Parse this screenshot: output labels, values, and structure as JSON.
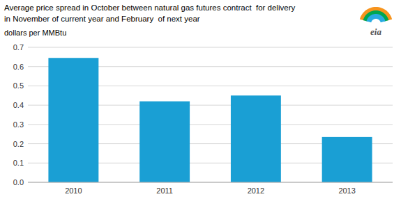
{
  "chart_data": {
    "type": "bar",
    "title": [
      "Average price spread in October between natural gas futures contract  for delivery",
      "in November of current year and February  of next year"
    ],
    "subtitle": "dollars per MMBtu",
    "annotations": [
      "eia"
    ],
    "categories": [
      "2010",
      "2011",
      "2012",
      "2013"
    ],
    "values": [
      0.645,
      0.42,
      0.45,
      0.235
    ],
    "color": "#1a9fd4",
    "ylim": [
      0,
      0.7
    ],
    "yticks": [
      {
        "value": 0,
        "label": "0.0"
      },
      0.1,
      0.2,
      0.3,
      0.4,
      0.5,
      0.6,
      0.7
    ],
    "grid": true
  }
}
